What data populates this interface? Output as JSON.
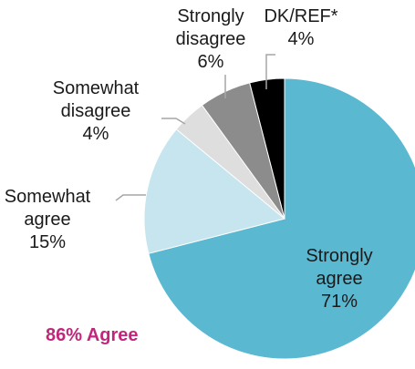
{
  "chart_data": {
    "type": "pie",
    "start_angle_deg": 0,
    "direction": "clockwise",
    "slices": [
      {
        "label_lines": [
          "Strongly",
          "agree",
          "71%"
        ],
        "value": 71,
        "color": "#5bb8d1"
      },
      {
        "label_lines": [
          "Somewhat",
          "agree",
          "15%"
        ],
        "value": 15,
        "color": "#c7e5ee"
      },
      {
        "label_lines": [
          "Somewhat",
          "disagree",
          "4%"
        ],
        "value": 4,
        "color": "#dedede"
      },
      {
        "label_lines": [
          "Strongly",
          "disagree",
          "6%"
        ],
        "value": 6,
        "color": "#8c8c8c"
      },
      {
        "label_lines": [
          "DK/REF*",
          "4%"
        ],
        "value": 4,
        "color": "#000000"
      }
    ],
    "annotation": {
      "text": "86% Agree",
      "color": "#c2267a"
    }
  }
}
